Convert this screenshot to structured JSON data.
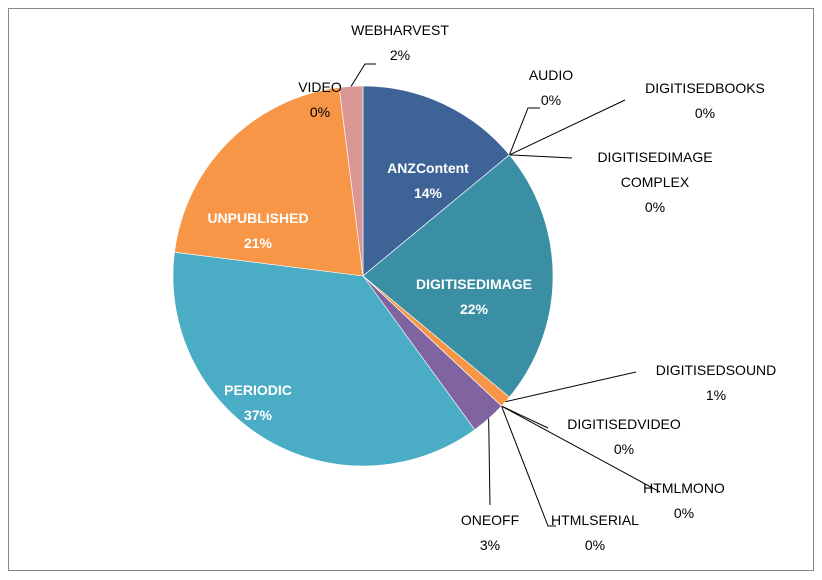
{
  "chart_data": {
    "type": "pie",
    "categories": [
      "ANZContent",
      "AUDIO",
      "DIGITISEDBOOKS",
      "DIGITISEDIMAGE COMPLEX",
      "DIGITISEDIMAGE",
      "DIGITISEDSOUND",
      "DIGITISEDVIDEO",
      "HTMLMONO",
      "HTMLSERIAL",
      "ONEOFF",
      "PERIODIC",
      "UNPUBLISHED",
      "VIDEO",
      "WEBHARVEST"
    ],
    "values": [
      14,
      0,
      0,
      0,
      22,
      1,
      0,
      0,
      0,
      3,
      37,
      21,
      0,
      2
    ],
    "value_labels": [
      "14%",
      "0%",
      "0%",
      "0%",
      "22%",
      "1%",
      "0%",
      "0%",
      "0%",
      "3%",
      "37%",
      "21%",
      "0%",
      "2%"
    ],
    "colors": [
      "#3e6397",
      "#c0504d",
      "#9bbb59",
      "#8064a2",
      "#3b8fa5",
      "#f79646",
      "#4f81bd",
      "#c0504d",
      "#9bbb59",
      "#8064a2",
      "#4bacc6",
      "#f79646",
      "#95b3d7",
      "#d99694"
    ]
  }
}
